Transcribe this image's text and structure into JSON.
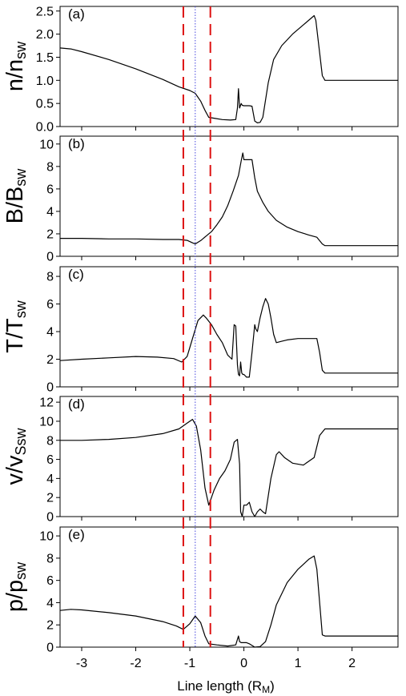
{
  "chart_data": {
    "type": "line",
    "xlabel": "Line length (R",
    "xlabel_sub": "M",
    "xlabel_close": ")",
    "xlim": [
      -3.4,
      2.85
    ],
    "xticks": [
      -3,
      -2,
      -1,
      0,
      1,
      2
    ],
    "xtick_labels": [
      "-3",
      "-2",
      "-1",
      "0",
      "1",
      "2"
    ],
    "vlines": [
      {
        "x": -1.12,
        "style": "dashed",
        "color": "#dd1111"
      },
      {
        "x": -0.62,
        "style": "dashed",
        "color": "#dd1111"
      },
      {
        "x": -0.9,
        "style": "dotted",
        "color": "#4444dd"
      }
    ],
    "panels": [
      {
        "label": "(a)",
        "ylabel_main": "n/n",
        "ylabel_sub": "sw",
        "ylim": [
          0,
          2.6
        ],
        "yticks": [
          0,
          0.5,
          1,
          1.5,
          2,
          2.5
        ],
        "ytick_labels": [
          "0.0",
          "0.5",
          "1.0",
          "1.5",
          "2.0",
          "2.5"
        ],
        "x": [
          -3.4,
          -3.2,
          -3.0,
          -2.5,
          -2.0,
          -1.5,
          -1.2,
          -1.0,
          -0.9,
          -0.8,
          -0.72,
          -0.65,
          -0.55,
          -0.4,
          -0.25,
          -0.15,
          -0.12,
          -0.1,
          -0.08,
          -0.05,
          -0.03,
          0.0,
          0.05,
          0.1,
          0.15,
          0.2,
          0.25,
          0.3,
          0.35,
          0.45,
          0.55,
          0.7,
          0.9,
          1.1,
          1.3,
          1.33,
          1.45,
          1.5,
          2.0,
          2.5,
          2.85
        ],
        "y": [
          1.7,
          1.68,
          1.62,
          1.45,
          1.25,
          1.02,
          0.86,
          0.78,
          0.72,
          0.55,
          0.35,
          0.2,
          0.18,
          0.15,
          0.14,
          0.15,
          0.4,
          0.82,
          0.4,
          0.5,
          0.46,
          0.45,
          0.45,
          0.45,
          0.44,
          0.12,
          0.08,
          0.09,
          0.2,
          0.95,
          1.45,
          1.75,
          2.0,
          2.2,
          2.4,
          2.3,
          1.1,
          1.0,
          1.0,
          1.0,
          1.0
        ]
      },
      {
        "label": "(b)",
        "ylabel_main": "B/B",
        "ylabel_sub": "sw",
        "ylim": [
          0,
          10.7
        ],
        "yticks": [
          0,
          2,
          4,
          6,
          8,
          10
        ],
        "ytick_labels": [
          "0",
          "2",
          "4",
          "6",
          "8",
          "10"
        ],
        "x": [
          -3.4,
          -3.0,
          -2.5,
          -2.0,
          -1.5,
          -1.2,
          -1.05,
          -0.95,
          -0.9,
          -0.8,
          -0.7,
          -0.6,
          -0.5,
          -0.4,
          -0.3,
          -0.2,
          -0.1,
          -0.05,
          -0.02,
          0.0,
          0.02,
          0.05,
          0.15,
          0.2,
          0.25,
          0.35,
          0.45,
          0.6,
          0.8,
          1.0,
          1.2,
          1.35,
          1.45,
          1.5,
          2.0,
          2.5,
          2.85
        ],
        "y": [
          1.6,
          1.6,
          1.55,
          1.55,
          1.5,
          1.5,
          1.42,
          1.2,
          1.1,
          1.4,
          1.8,
          2.2,
          2.8,
          3.5,
          4.5,
          5.8,
          7.2,
          8.5,
          9.2,
          8.6,
          8.6,
          8.6,
          8.6,
          7.0,
          5.8,
          4.8,
          4.0,
          3.2,
          2.6,
          2.2,
          1.9,
          1.7,
          1.1,
          0.95,
          0.95,
          0.95,
          0.95
        ]
      },
      {
        "label": "(c)",
        "ylabel_main": "T/T",
        "ylabel_sub": "sw",
        "ylim": [
          0,
          8.7
        ],
        "yticks": [
          0,
          2,
          4,
          6,
          8
        ],
        "ytick_labels": [
          "0",
          "2",
          "4",
          "6",
          "8"
        ],
        "x": [
          -3.4,
          -3.0,
          -2.5,
          -2.0,
          -1.6,
          -1.3,
          -1.15,
          -1.05,
          -0.95,
          -0.85,
          -0.75,
          -0.7,
          -0.6,
          -0.5,
          -0.4,
          -0.3,
          -0.22,
          -0.18,
          -0.15,
          -0.12,
          -0.1,
          -0.08,
          -0.06,
          -0.04,
          -0.02,
          0.0,
          0.05,
          0.1,
          0.15,
          0.2,
          0.22,
          0.25,
          0.3,
          0.35,
          0.4,
          0.45,
          0.5,
          0.55,
          0.6,
          0.7,
          0.8,
          1.0,
          1.2,
          1.35,
          1.4,
          1.45,
          1.5,
          2.0,
          2.5,
          2.85
        ],
        "y": [
          1.9,
          2.0,
          2.1,
          2.2,
          2.15,
          2.05,
          1.8,
          2.2,
          3.5,
          4.8,
          5.2,
          5.0,
          4.5,
          3.8,
          3.2,
          2.3,
          2.0,
          4.5,
          4.4,
          1.6,
          0.9,
          0.8,
          1.8,
          1.0,
          0.9,
          0.9,
          0.7,
          0.7,
          2.5,
          4.5,
          4.2,
          4.0,
          5.0,
          5.8,
          6.4,
          6.0,
          5.0,
          3.8,
          3.2,
          3.3,
          3.4,
          3.5,
          3.5,
          3.5,
          2.5,
          1.2,
          1.0,
          1.0,
          1.0,
          1.0
        ]
      },
      {
        "label": "(d)",
        "ylabel_main": "v/v",
        "ylabel_sub": "Ssw",
        "ylim": [
          0,
          12.6
        ],
        "yticks": [
          0,
          2,
          4,
          6,
          8,
          10,
          12
        ],
        "ytick_labels": [
          "0",
          "2",
          "4",
          "6",
          "8",
          "10",
          "12"
        ],
        "x": [
          -3.4,
          -3.0,
          -2.5,
          -2.0,
          -1.5,
          -1.2,
          -1.05,
          -0.95,
          -0.88,
          -0.8,
          -0.72,
          -0.65,
          -0.55,
          -0.45,
          -0.35,
          -0.25,
          -0.18,
          -0.12,
          -0.08,
          -0.06,
          -0.03,
          0.0,
          0.05,
          0.1,
          0.15,
          0.2,
          0.25,
          0.3,
          0.35,
          0.4,
          0.5,
          0.6,
          0.65,
          0.75,
          0.9,
          1.1,
          1.3,
          1.4,
          1.5,
          2.0,
          2.5,
          2.85
        ],
        "y": [
          8.0,
          8.0,
          8.1,
          8.3,
          8.7,
          9.2,
          9.8,
          10.2,
          9.5,
          7.0,
          3.0,
          1.2,
          2.8,
          4.0,
          4.8,
          6.0,
          7.8,
          8.1,
          5.5,
          0.5,
          0.0,
          1.2,
          1.2,
          1.5,
          0.5,
          0.0,
          0.5,
          0.8,
          0.5,
          0.3,
          4.0,
          6.5,
          6.8,
          6.2,
          5.6,
          5.4,
          6.2,
          8.5,
          9.2,
          9.2,
          9.2,
          9.2
        ]
      },
      {
        "label": "(e)",
        "ylabel_main": "p/p",
        "ylabel_sub": "sw",
        "ylim": [
          0,
          10.8
        ],
        "yticks": [
          0,
          2,
          4,
          6,
          8,
          10
        ],
        "ytick_labels": [
          "0",
          "2",
          "4",
          "6",
          "8",
          "10"
        ],
        "x": [
          -3.4,
          -3.2,
          -3.0,
          -2.5,
          -2.0,
          -1.5,
          -1.25,
          -1.12,
          -1.0,
          -0.9,
          -0.8,
          -0.72,
          -0.65,
          -0.5,
          -0.3,
          -0.15,
          -0.1,
          -0.08,
          -0.05,
          -0.02,
          0.0,
          0.05,
          0.1,
          0.2,
          0.3,
          0.4,
          0.5,
          0.6,
          0.8,
          1.0,
          1.2,
          1.3,
          1.35,
          1.45,
          1.5,
          2.0,
          2.5,
          2.85
        ],
        "y": [
          3.3,
          3.4,
          3.35,
          3.1,
          2.8,
          2.3,
          1.9,
          1.6,
          2.1,
          2.8,
          2.2,
          1.0,
          0.3,
          0.2,
          0.1,
          0.2,
          1.0,
          0.5,
          0.4,
          0.4,
          0.4,
          0.4,
          0.3,
          0.0,
          0.05,
          0.5,
          2.0,
          3.8,
          5.8,
          7.0,
          7.9,
          8.2,
          7.0,
          1.1,
          1.0,
          1.0,
          1.0,
          1.0
        ]
      }
    ]
  }
}
